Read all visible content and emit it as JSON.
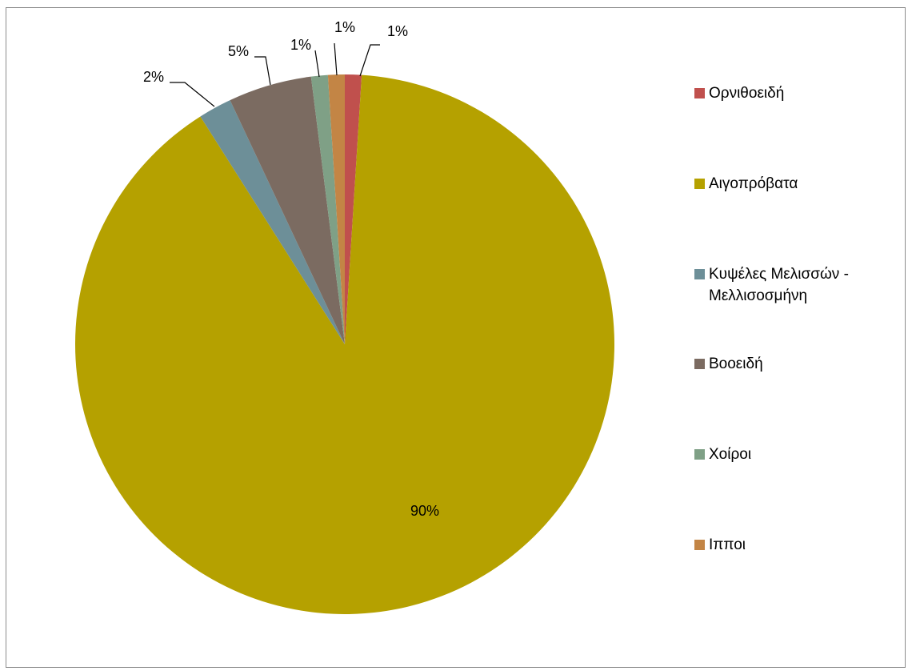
{
  "chart_data": {
    "type": "pie",
    "title": "",
    "start_angle_deg": 0,
    "direction": "clockwise",
    "slices": [
      {
        "name": "Ορνιθοειδή",
        "value": 1,
        "label": "1%",
        "color": "#c0504d"
      },
      {
        "name": "Αιγοπρόβατα",
        "value": 90,
        "label": "90%",
        "color": "#b5a100"
      },
      {
        "name": "Κυψέλες Μελισσών -\nΜελλισοσμήνη",
        "value": 2,
        "label": "2%",
        "color": "#6d8f98"
      },
      {
        "name": "Βοοειδή",
        "value": 5,
        "label": "5%",
        "color": "#7b6b61"
      },
      {
        "name": "Χοίροι",
        "value": 1,
        "label": "1%",
        "color": "#7fa086"
      },
      {
        "name": "Ιπποι",
        "value": 1,
        "label": "1%",
        "color": "#c38545"
      }
    ],
    "legend_position": "right"
  }
}
